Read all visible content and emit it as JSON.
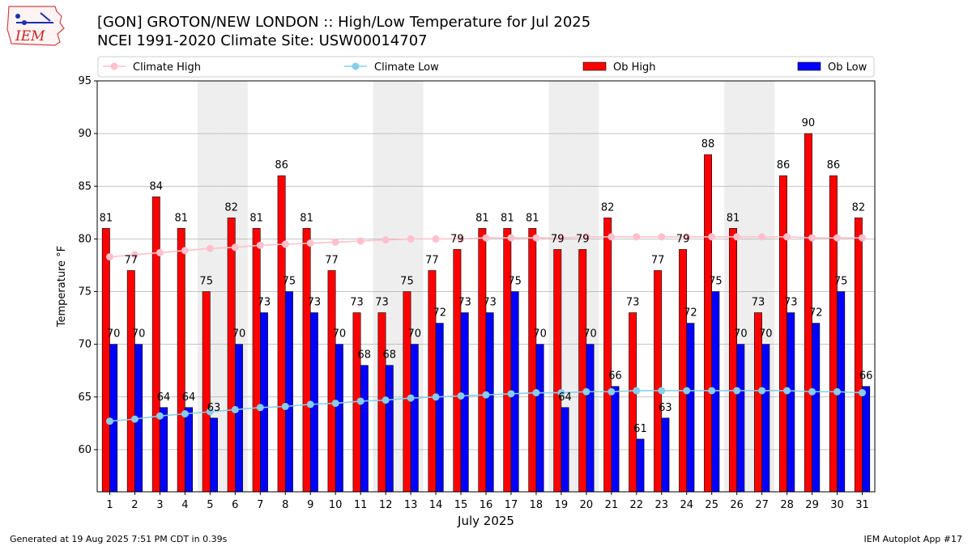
{
  "header": {
    "title_line1": "[GON] GROTON/NEW LONDON :: High/Low Temperature for Jul 2025",
    "title_line2": "NCEI 1991-2020 Climate Site: USW00014707"
  },
  "logo": {
    "text": "IEM",
    "icon": "iowa-state-outline-icon"
  },
  "footer": {
    "left": "Generated at 19 Aug 2025 7:51 PM CDT in 0.39s",
    "right": "IEM Autoplot App #17"
  },
  "colors": {
    "ob_high": "#ff0000",
    "ob_low": "#0000ff",
    "climate_high": "#ffc0cb",
    "climate_low": "#87ceeb",
    "weekend_band": "#eeeeee",
    "grid": "#b0b0b0"
  },
  "chart_data": {
    "type": "bar",
    "xlabel": "July 2025",
    "ylabel": "Temperature °F",
    "ylim": [
      56,
      95
    ],
    "yticks": [
      60,
      65,
      70,
      75,
      80,
      85,
      90,
      95
    ],
    "grid": "horizontal",
    "legend_placement": "top",
    "legend": [
      "Climate High",
      "Climate Low",
      "Ob High",
      "Ob Low"
    ],
    "categories": [
      1,
      2,
      3,
      4,
      5,
      6,
      7,
      8,
      9,
      10,
      11,
      12,
      13,
      14,
      15,
      16,
      17,
      18,
      19,
      20,
      21,
      22,
      23,
      24,
      25,
      26,
      27,
      28,
      29,
      30,
      31
    ],
    "shaded_days": [
      5,
      6,
      12,
      13,
      19,
      20,
      26,
      27
    ],
    "series": [
      {
        "name": "Ob High",
        "kind": "bar",
        "values": [
          81,
          77,
          84,
          81,
          75,
          82,
          81,
          86,
          81,
          77,
          73,
          73,
          75,
          77,
          79,
          81,
          81,
          81,
          79,
          79,
          82,
          73,
          77,
          79,
          88,
          81,
          73,
          86,
          90,
          86,
          82
        ]
      },
      {
        "name": "Ob Low",
        "kind": "bar",
        "values": [
          70,
          70,
          64,
          64,
          63,
          70,
          73,
          75,
          73,
          70,
          68,
          68,
          70,
          72,
          73,
          73,
          75,
          70,
          64,
          70,
          66,
          61,
          63,
          72,
          75,
          70,
          70,
          73,
          72,
          75,
          66
        ]
      },
      {
        "name": "Climate High",
        "kind": "line",
        "values": [
          78.3,
          78.5,
          78.7,
          78.9,
          79.1,
          79.2,
          79.4,
          79.5,
          79.6,
          79.7,
          79.8,
          79.9,
          80.0,
          80.0,
          80.0,
          80.1,
          80.1,
          80.1,
          80.1,
          80.2,
          80.2,
          80.2,
          80.2,
          80.2,
          80.2,
          80.2,
          80.2,
          80.2,
          80.1,
          80.1,
          80.1
        ]
      },
      {
        "name": "Climate Low",
        "kind": "line",
        "values": [
          62.7,
          62.9,
          63.2,
          63.4,
          63.6,
          63.8,
          64.0,
          64.1,
          64.3,
          64.4,
          64.6,
          64.7,
          64.9,
          65.0,
          65.1,
          65.2,
          65.3,
          65.4,
          65.4,
          65.5,
          65.5,
          65.6,
          65.6,
          65.6,
          65.6,
          65.6,
          65.6,
          65.6,
          65.5,
          65.5,
          65.4
        ]
      }
    ]
  }
}
